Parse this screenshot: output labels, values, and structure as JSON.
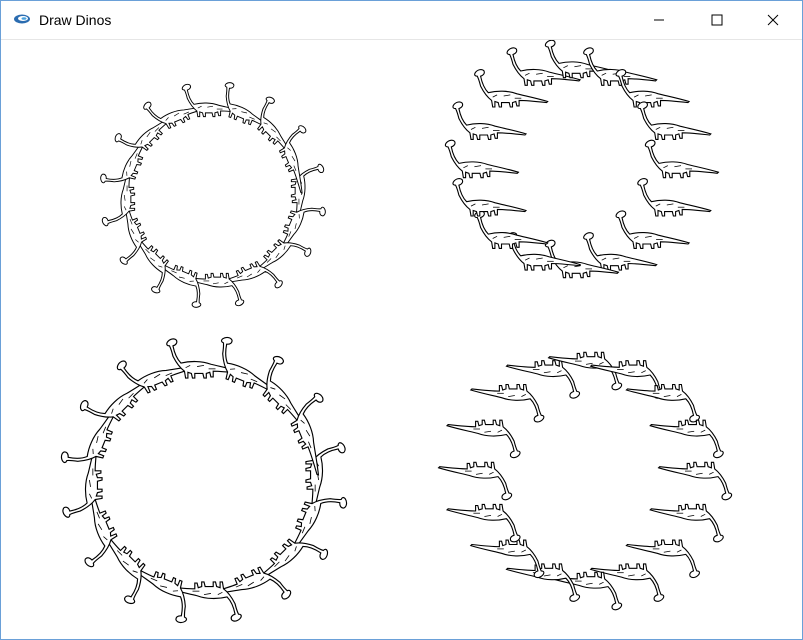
{
  "window": {
    "title": "Draw Dinos",
    "app_icon": "app-logo-icon",
    "border_color": "#6aa0d8"
  },
  "caption_buttons": [
    {
      "name": "minimize-button",
      "icon": "minimize-icon"
    },
    {
      "name": "maximize-button",
      "icon": "maximize-icon"
    },
    {
      "name": "close-button",
      "icon": "close-icon"
    }
  ],
  "canvas": {
    "stroke_color": "#000000",
    "background_color": "#ffffff",
    "rings": [
      {
        "name": "dino-ring-top-left",
        "count": 16,
        "orientation": "tangent-small"
      },
      {
        "name": "dino-ring-top-right",
        "count": 16,
        "orientation": "upright"
      },
      {
        "name": "dino-ring-bottom-left",
        "count": 16,
        "orientation": "tangent-large"
      },
      {
        "name": "dino-ring-bottom-right",
        "count": 16,
        "orientation": "upside-down"
      }
    ]
  }
}
